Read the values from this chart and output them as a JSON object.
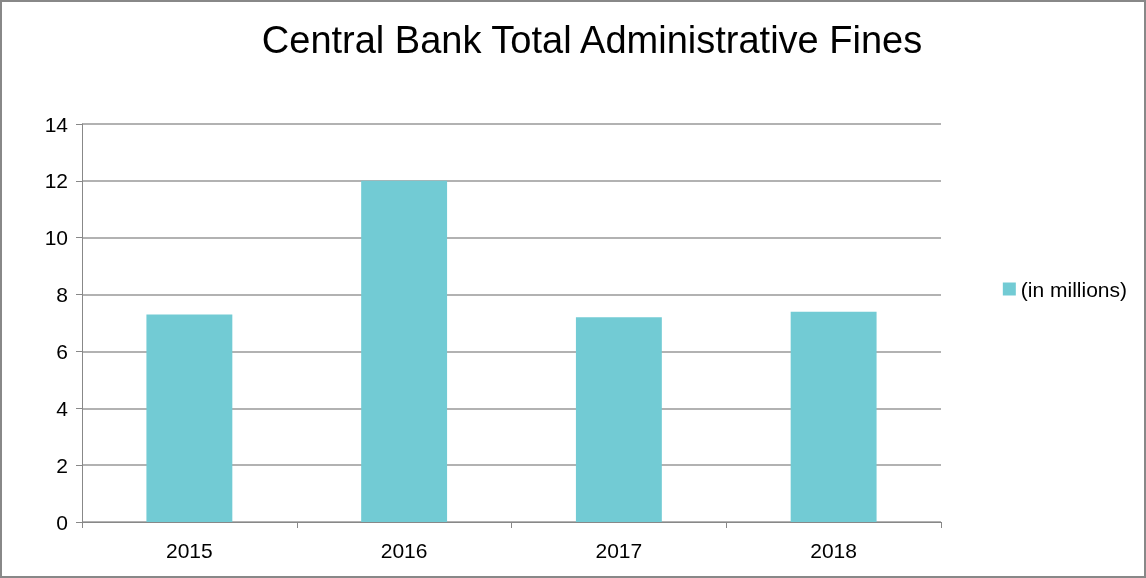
{
  "chart_data": {
    "type": "bar",
    "title": "Central Bank Total Administrative Fines",
    "categories": [
      "2015",
      "2016",
      "2017",
      "2018"
    ],
    "series": [
      {
        "name": "(in millions)",
        "color": "#72cbd4",
        "values": [
          7.3,
          12.0,
          7.2,
          7.4
        ]
      }
    ],
    "ylim": [
      0,
      14
    ],
    "yticks": [
      0,
      2,
      4,
      6,
      8,
      10,
      12,
      14
    ],
    "grid": "y",
    "legend": "right"
  }
}
